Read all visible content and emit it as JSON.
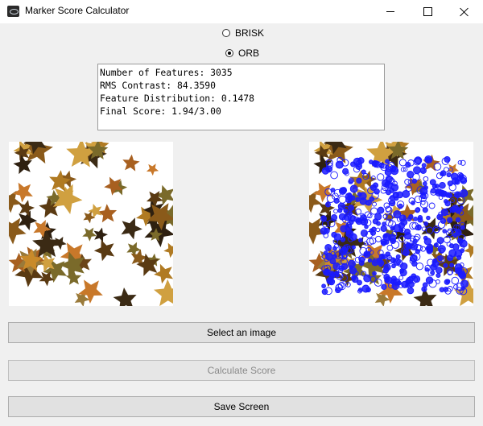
{
  "window": {
    "title": "Marker Score Calculator",
    "icon": "app-icon"
  },
  "algorithm": {
    "options": [
      {
        "label": "BRISK",
        "checked": false
      },
      {
        "label": "ORB",
        "checked": true
      }
    ]
  },
  "results": {
    "lines": [
      "Number of Features: 3035",
      "RMS Contrast: 84.3590",
      "Feature Distribution: 0.1478",
      "Final Score: 1.94/3.00"
    ]
  },
  "images": {
    "original": {
      "description_name": "maple-leaves-image"
    },
    "features": {
      "description_name": "maple-leaves-with-orb-keypoints",
      "keypoint_color": "#1a1aff"
    }
  },
  "buttons": {
    "select_label": "Select an image",
    "calculate_label": "Calculate Score",
    "calculate_enabled": false,
    "save_label": "Save Screen"
  },
  "colors": {
    "window_bg": "#f0f0f0",
    "button_bg": "#e1e1e1",
    "disabled_text": "#8a8a8a",
    "keypoints": "#1a1aff"
  }
}
